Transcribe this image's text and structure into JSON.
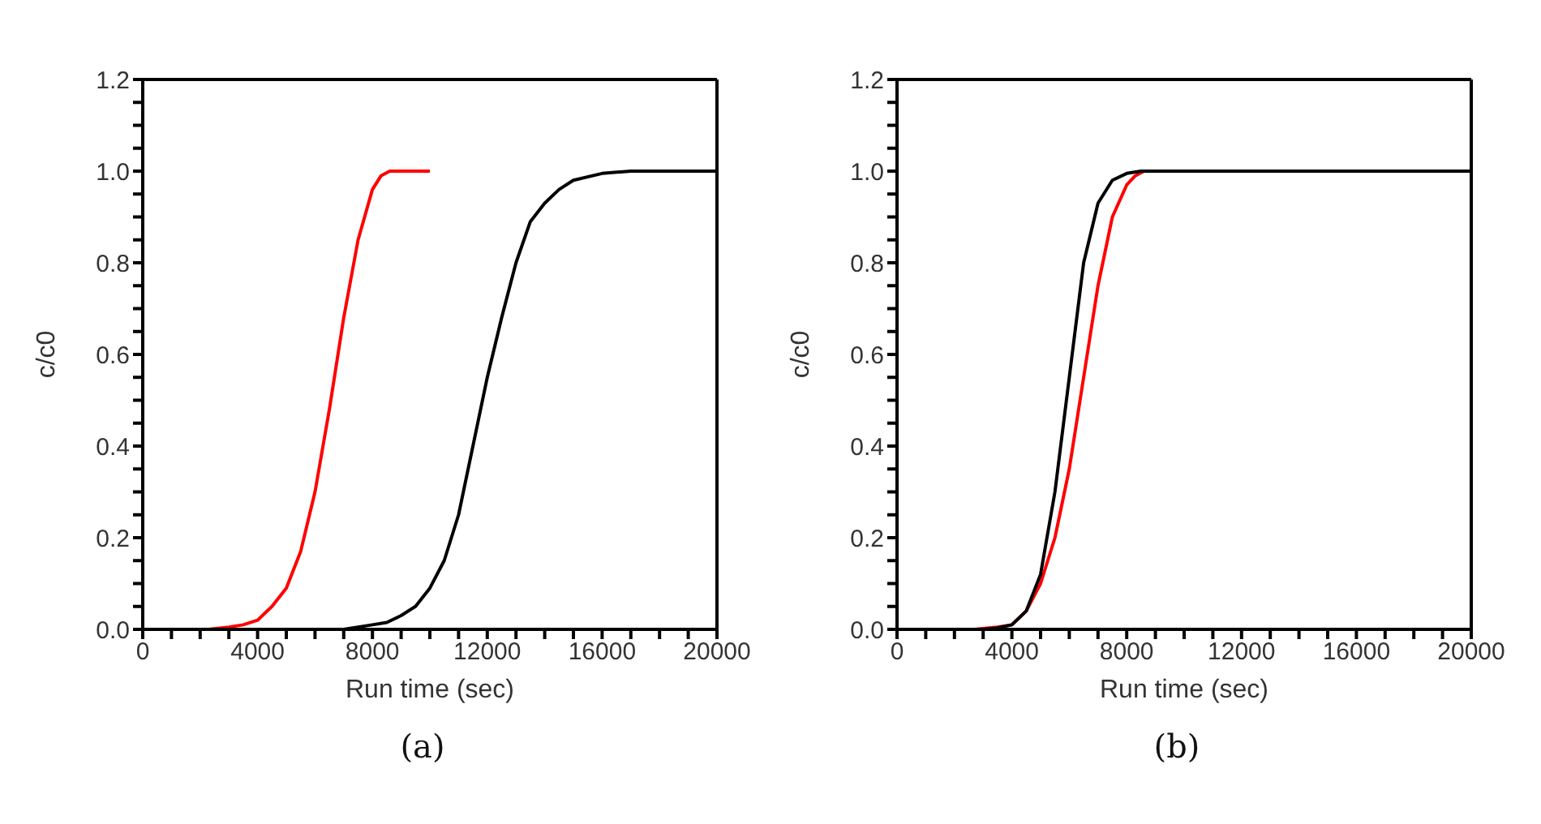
{
  "chart_data": [
    {
      "type": "line",
      "xlabel": "Run time (sec)",
      "ylabel": "c/c0",
      "annotations": [
        "(a)"
      ],
      "xlim": [
        0,
        20000
      ],
      "ylim": [
        0,
        1.2
      ],
      "xticks": [
        0,
        {
          "value": 1000,
          "label": null
        },
        {
          "value": 2000,
          "label": null
        },
        {
          "value": 3000,
          "label": null
        },
        4000,
        {
          "value": 5000,
          "label": null
        },
        {
          "value": 6000,
          "label": null
        },
        {
          "value": 7000,
          "label": null
        },
        8000,
        {
          "value": 9000,
          "label": null
        },
        {
          "value": 10000,
          "label": null
        },
        {
          "value": 11000,
          "label": null
        },
        12000,
        {
          "value": 13000,
          "label": null
        },
        {
          "value": 14000,
          "label": null
        },
        {
          "value": 15000,
          "label": null
        },
        16000,
        {
          "value": 17000,
          "label": null
        },
        {
          "value": 18000,
          "label": null
        },
        {
          "value": 19000,
          "label": null
        },
        20000
      ],
      "yticks": [
        {
          "value": 0,
          "label": "0.0"
        },
        {
          "value": 0.05,
          "label": null
        },
        {
          "value": 0.1,
          "label": null
        },
        {
          "value": 0.15,
          "label": null
        },
        {
          "value": 0.2,
          "label": "0.2"
        },
        {
          "value": 0.25,
          "label": null
        },
        {
          "value": 0.3,
          "label": null
        },
        {
          "value": 0.35,
          "label": null
        },
        {
          "value": 0.4,
          "label": "0.4"
        },
        {
          "value": 0.45,
          "label": null
        },
        {
          "value": 0.5,
          "label": null
        },
        {
          "value": 0.55,
          "label": null
        },
        {
          "value": 0.6,
          "label": "0.6"
        },
        {
          "value": 0.65,
          "label": null
        },
        {
          "value": 0.7,
          "label": null
        },
        {
          "value": 0.75,
          "label": null
        },
        {
          "value": 0.8,
          "label": "0.8"
        },
        {
          "value": 0.85,
          "label": null
        },
        {
          "value": 0.9,
          "label": null
        },
        {
          "value": 0.95,
          "label": null
        },
        {
          "value": 1.0,
          "label": "1.0"
        },
        {
          "value": 1.05,
          "label": null
        },
        {
          "value": 1.1,
          "label": null
        },
        {
          "value": 1.15,
          "label": null
        },
        {
          "value": 1.2,
          "label": "1.2"
        }
      ],
      "grid": false,
      "legend": false,
      "marker": "none",
      "line_style": "solid",
      "series": [
        {
          "color": "#ff0000",
          "x": [
            2300,
            3000,
            3500,
            4000,
            4500,
            5000,
            5500,
            6000,
            6500,
            7000,
            7500,
            8000,
            8300,
            8600,
            10000
          ],
          "values": [
            0,
            0.005,
            0.01,
            0.02,
            0.05,
            0.09,
            0.17,
            0.3,
            0.48,
            0.68,
            0.85,
            0.96,
            0.99,
            1.0,
            1.0
          ]
        },
        {
          "color": "#000000",
          "x": [
            7000,
            8000,
            8500,
            9000,
            9500,
            10000,
            10500,
            11000,
            11500,
            12000,
            12500,
            13000,
            13500,
            14000,
            14500,
            15000,
            16000,
            17000,
            20000
          ],
          "values": [
            0,
            0.01,
            0.015,
            0.03,
            0.05,
            0.09,
            0.15,
            0.25,
            0.4,
            0.55,
            0.68,
            0.8,
            0.89,
            0.93,
            0.96,
            0.98,
            0.995,
            1.0,
            1.0
          ]
        }
      ]
    },
    {
      "type": "line",
      "xlabel": "Run time (sec)",
      "ylabel": "c/c0",
      "annotations": [
        "(b)"
      ],
      "xlim": [
        0,
        20000
      ],
      "ylim": [
        0,
        1.2
      ],
      "xticks": [
        0,
        {
          "value": 1000,
          "label": null
        },
        {
          "value": 2000,
          "label": null
        },
        {
          "value": 3000,
          "label": null
        },
        4000,
        {
          "value": 5000,
          "label": null
        },
        {
          "value": 6000,
          "label": null
        },
        {
          "value": 7000,
          "label": null
        },
        8000,
        {
          "value": 9000,
          "label": null
        },
        {
          "value": 10000,
          "label": null
        },
        {
          "value": 11000,
          "label": null
        },
        12000,
        {
          "value": 13000,
          "label": null
        },
        {
          "value": 14000,
          "label": null
        },
        {
          "value": 15000,
          "label": null
        },
        16000,
        {
          "value": 17000,
          "label": null
        },
        {
          "value": 18000,
          "label": null
        },
        {
          "value": 19000,
          "label": null
        },
        20000
      ],
      "yticks": [
        {
          "value": 0,
          "label": "0.0"
        },
        {
          "value": 0.05,
          "label": null
        },
        {
          "value": 0.1,
          "label": null
        },
        {
          "value": 0.15,
          "label": null
        },
        {
          "value": 0.2,
          "label": "0.2"
        },
        {
          "value": 0.25,
          "label": null
        },
        {
          "value": 0.3,
          "label": null
        },
        {
          "value": 0.35,
          "label": null
        },
        {
          "value": 0.4,
          "label": "0.4"
        },
        {
          "value": 0.45,
          "label": null
        },
        {
          "value": 0.5,
          "label": null
        },
        {
          "value": 0.55,
          "label": null
        },
        {
          "value": 0.6,
          "label": "0.6"
        },
        {
          "value": 0.65,
          "label": null
        },
        {
          "value": 0.7,
          "label": null
        },
        {
          "value": 0.75,
          "label": null
        },
        {
          "value": 0.8,
          "label": "0.8"
        },
        {
          "value": 0.85,
          "label": null
        },
        {
          "value": 0.9,
          "label": null
        },
        {
          "value": 0.95,
          "label": null
        },
        {
          "value": 1.0,
          "label": "1.0"
        },
        {
          "value": 1.05,
          "label": null
        },
        {
          "value": 1.1,
          "label": null
        },
        {
          "value": 1.15,
          "label": null
        },
        {
          "value": 1.2,
          "label": "1.2"
        }
      ],
      "grid": false,
      "legend": false,
      "marker": "none",
      "line_style": "solid",
      "series": [
        {
          "color": "#ff0000",
          "x": [
            2700,
            3500,
            4000,
            4500,
            5000,
            5500,
            6000,
            6500,
            7000,
            7500,
            8000,
            8300,
            8600
          ],
          "values": [
            0,
            0.005,
            0.01,
            0.04,
            0.1,
            0.2,
            0.35,
            0.55,
            0.75,
            0.9,
            0.97,
            0.99,
            1.0
          ]
        },
        {
          "color": "#000000",
          "x": [
            3000,
            3500,
            4000,
            4500,
            5000,
            5500,
            6000,
            6500,
            7000,
            7500,
            8000,
            8500,
            20000
          ],
          "values": [
            0,
            0.003,
            0.01,
            0.04,
            0.12,
            0.3,
            0.55,
            0.8,
            0.93,
            0.98,
            0.995,
            1.0,
            1.0
          ]
        }
      ]
    }
  ]
}
